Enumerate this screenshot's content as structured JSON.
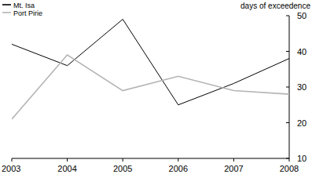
{
  "chart_data": {
    "type": "line",
    "y_label": "days of exceedence",
    "x": [
      2003,
      2004,
      2005,
      2006,
      2007,
      2008
    ],
    "xlim": [
      2003,
      2008
    ],
    "xticks": [
      2003,
      2004,
      2005,
      2006,
      2007,
      2008
    ],
    "ylim": [
      10,
      50
    ],
    "yticks": [
      10,
      20,
      30,
      40,
      50
    ],
    "grid": false,
    "legend": "top-left",
    "series": [
      {
        "name": "Mt. Isa",
        "color": "#000000",
        "values": [
          42,
          36,
          49,
          25,
          31,
          38
        ]
      },
      {
        "name": "Port Pirie",
        "color": "#b4b4b4",
        "values": [
          21,
          39,
          29,
          33,
          29,
          28
        ]
      }
    ]
  }
}
